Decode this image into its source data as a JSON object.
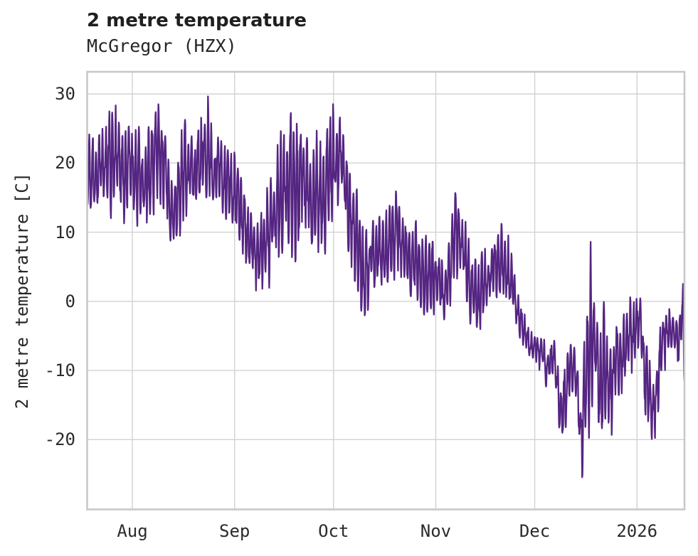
{
  "header": {
    "title": "2 metre temperature",
    "subtitle": "McGregor (HZX)"
  },
  "chart_data": {
    "type": "line",
    "title": "2 metre temperature",
    "subtitle": "McGregor (HZX)",
    "xlabel": "",
    "ylabel": "2 metre temperature [C]",
    "x_tick_labels": [
      "Aug",
      "Sep",
      "Oct",
      "Nov",
      "Dec",
      "2026"
    ],
    "x_tick_positions_days": [
      13.7,
      44.7,
      74.7,
      105.7,
      135.7,
      166.7
    ],
    "x_range_days": [
      0,
      181.1
    ],
    "y_ticks": [
      30,
      20,
      10,
      0,
      -10,
      -20
    ],
    "ylim": [
      -30.1,
      33.2
    ],
    "grid": true,
    "legend_position": "none",
    "line_color": "#552582",
    "series": [
      {
        "name": "2 metre temperature [C]",
        "envelope_days": [
          0,
          2,
          4,
          6,
          9,
          11,
          13,
          15,
          17,
          19,
          20.7,
          23,
          25,
          26.5,
          28,
          30,
          32,
          34,
          36.7,
          38.5,
          40,
          42,
          44,
          46,
          48,
          50,
          51.5,
          53.5,
          55.5,
          57.5,
          59.5,
          61.3,
          63,
          65,
          67,
          69,
          71,
          73,
          75.3,
          77.5,
          79.5,
          81.5,
          83.8,
          86,
          88,
          90,
          92,
          94,
          96,
          98,
          100,
          102,
          104,
          106,
          108,
          110,
          112,
          114,
          116,
          118,
          120,
          122,
          124,
          126,
          128,
          130,
          132,
          134,
          136,
          138,
          139.5,
          141.5,
          143.5,
          146,
          148,
          149.8,
          152.3,
          154,
          155.8,
          157.5,
          159,
          160.5,
          162,
          164,
          166,
          167.8,
          169,
          171.8,
          174,
          176,
          178,
          179.5,
          180.4,
          181.1
        ],
        "envelope_low": [
          12,
          11,
          13,
          12,
          13,
          10.5,
          13,
          11,
          8.5,
          10,
          14,
          14,
          8,
          6.8,
          10,
          12,
          13,
          13,
          15,
          13,
          13.5,
          11,
          10,
          8,
          5.8,
          2.5,
          1.2,
          2,
          2.5,
          6,
          8,
          5,
          1.7,
          11,
          9,
          6.5,
          6.5,
          8,
          12,
          12,
          3,
          1,
          -3.4,
          1,
          2,
          1.5,
          3,
          4,
          2,
          -0.5,
          0,
          -2,
          -2.5,
          -2,
          -5,
          -1,
          3,
          2,
          -3,
          -4.5,
          -4,
          -2,
          0,
          1,
          -1,
          -4,
          -6,
          -8.5,
          -9.5,
          -10,
          -13.8,
          -10,
          -22.4,
          -16,
          -13,
          -26.8,
          -20,
          -15,
          -21.8,
          -23,
          -20,
          -14,
          -14,
          -11,
          -9.5,
          -6,
          -17.6,
          -20.8,
          -12,
          -9,
          -7,
          -11,
          -6,
          -15.3
        ],
        "envelope_high": [
          24,
          25,
          26,
          27.5,
          30.4,
          26,
          27,
          26,
          24,
          27,
          30.2,
          27,
          21,
          18,
          24,
          27.6,
          24,
          26,
          29.4,
          23,
          26,
          24,
          22,
          20,
          16,
          13,
          12,
          16,
          18,
          24,
          27,
          30.2,
          27.5,
          27,
          23,
          24,
          26,
          27,
          30.1,
          28.6,
          21,
          18.8,
          11,
          12,
          13.5,
          12,
          15,
          18.5,
          13,
          11,
          12.5,
          9,
          10.5,
          8.5,
          7,
          10,
          17.7,
          13.2,
          8,
          6,
          7,
          9,
          11.5,
          12,
          9,
          3,
          -1,
          -4,
          -4.5,
          -5,
          -6,
          -5.5,
          -12,
          -6,
          -6,
          -13,
          8.4,
          3,
          -2,
          1,
          -5,
          -1,
          -0.5,
          0,
          0.9,
          0.5,
          -5,
          -11,
          -1.5,
          0.4,
          -1,
          -2,
          4.8,
          -3
        ]
      }
    ]
  },
  "style": {
    "background": "#ffffff",
    "grid_color": "#d2d2d2",
    "frame_color": "#c8c8c8",
    "text_color": "#262626"
  }
}
